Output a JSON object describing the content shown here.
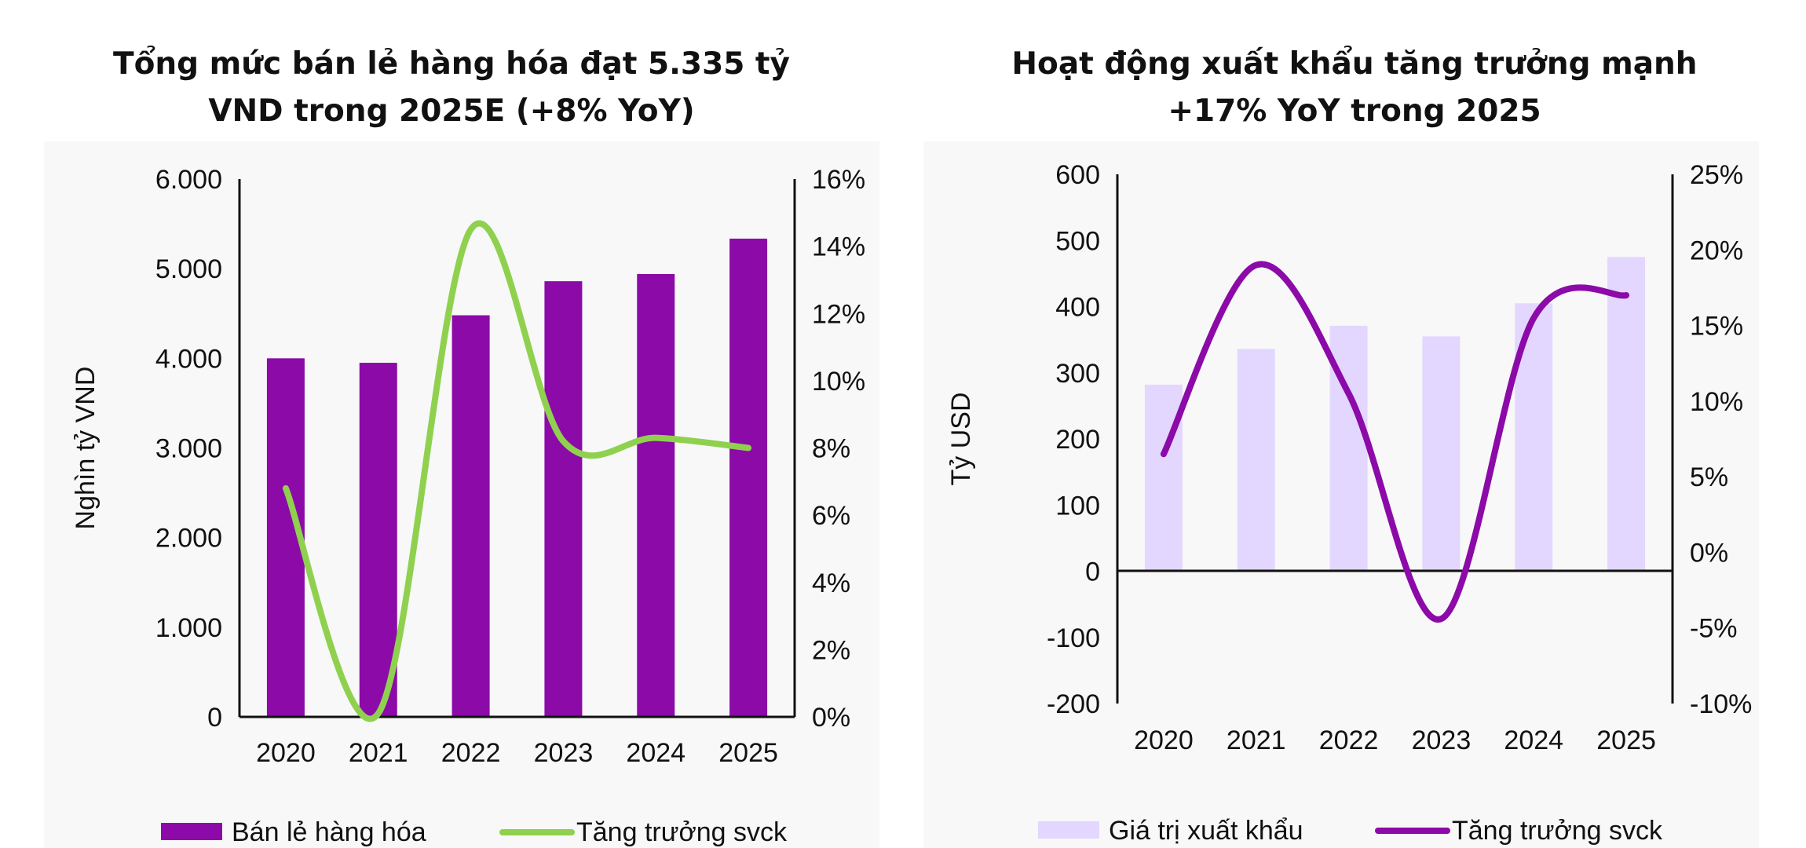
{
  "colors": {
    "retail_bar": "#8b0aa8",
    "retail_line": "#8fd14f",
    "export_bar": "#e3d7ff",
    "export_line": "#8b0aa8",
    "axis": "#111111"
  },
  "chart_data": [
    {
      "type": "bar",
      "title": "Tổng mức bán lẻ hàng hóa đạt 5.335 tỷ VND trong 2025E (+8% YoY)",
      "title_line1": "Tổng mức bán lẻ hàng hóa đạt 5.335 tỷ",
      "title_line2": "VND trong 2025E (+8% YoY)",
      "categories": [
        "2020",
        "2021",
        "2022",
        "2023",
        "2024",
        "2025"
      ],
      "ylabel": "Nghìn tỷ VND",
      "ylim": [
        0,
        6000
      ],
      "yticks": [
        "0",
        "1.000",
        "2.000",
        "3.000",
        "4.000",
        "5.000",
        "6.000"
      ],
      "y2lim": [
        0,
        16
      ],
      "y2ticks": [
        "0%",
        "2%",
        "4%",
        "6%",
        "8%",
        "10%",
        "12%",
        "14%",
        "16%"
      ],
      "grid": false,
      "legend_position": "bottom",
      "series": [
        {
          "name": "Bán lẻ hàng hóa",
          "type": "bar",
          "axis": "left",
          "values": [
            4000,
            3950,
            4480,
            4860,
            4940,
            5335
          ]
        },
        {
          "name": "Tăng trưởng svck",
          "type": "line",
          "axis": "right",
          "values": [
            6.8,
            0.1,
            14.5,
            8.2,
            8.3,
            8.0
          ]
        }
      ]
    },
    {
      "type": "bar",
      "title": "Hoạt động xuất khẩu tăng trưởng mạnh +17% YoY trong 2025",
      "title_line1": "Hoạt động xuất khẩu tăng trưởng mạnh",
      "title_line2": "+17% YoY trong 2025",
      "categories": [
        "2020",
        "2021",
        "2022",
        "2023",
        "2024",
        "2025"
      ],
      "ylabel": "Tỷ USD",
      "ylim": [
        -200,
        600
      ],
      "yticks": [
        "-200",
        "-100",
        "0",
        "100",
        "200",
        "300",
        "400",
        "500",
        "600"
      ],
      "y2lim": [
        -10,
        25
      ],
      "y2ticks": [
        "-10%",
        "-5%",
        "0%",
        "5%",
        "10%",
        "15%",
        "20%",
        "25%"
      ],
      "grid": false,
      "legend_position": "bottom",
      "series": [
        {
          "name": "Giá trị xuất khẩu",
          "type": "bar",
          "axis": "left",
          "values": [
            282,
            336,
            371,
            355,
            405,
            475
          ]
        },
        {
          "name": "Tăng trưởng svck",
          "type": "line",
          "axis": "right",
          "values": [
            6.5,
            19.0,
            10.5,
            -4.4,
            15.5,
            17.0
          ]
        }
      ]
    }
  ]
}
